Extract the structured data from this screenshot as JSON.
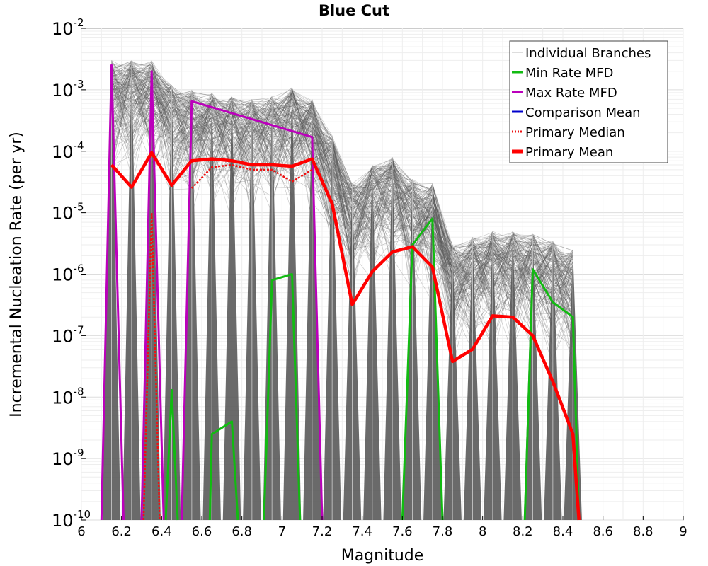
{
  "chart_data": {
    "type": "line",
    "title": "Blue Cut",
    "xlabel": "Magnitude",
    "ylabel": "Incremental Nucleation Rate (per yr)",
    "xlim": [
      6,
      9
    ],
    "ylim": [
      1e-10,
      0.01
    ],
    "yscale": "log",
    "grid": true,
    "legend_position": "top-right",
    "x_ticks": [
      "6",
      "6.2",
      "6.4",
      "6.6",
      "6.8",
      "7",
      "7.2",
      "7.4",
      "7.6",
      "7.8",
      "8",
      "8.2",
      "8.4",
      "8.6",
      "8.8",
      "9"
    ],
    "y_ticks": [
      {
        "base": "10",
        "exp": "-10"
      },
      {
        "base": "10",
        "exp": "-9"
      },
      {
        "base": "10",
        "exp": "-8"
      },
      {
        "base": "10",
        "exp": "-7"
      },
      {
        "base": "10",
        "exp": "-6"
      },
      {
        "base": "10",
        "exp": "-5"
      },
      {
        "base": "10",
        "exp": "-4"
      },
      {
        "base": "10",
        "exp": "-3"
      },
      {
        "base": "10",
        "exp": "-2"
      }
    ],
    "colors": {
      "individual": "#555555",
      "min_rate": "#11bb11",
      "max_rate": "#bb00bb",
      "comparison_mean": "#0000cc",
      "primary_median": "#ee1111",
      "primary_mean": "#ff0000"
    },
    "series": [
      {
        "name": "Individual Branches",
        "style": "band",
        "x": [
          6.15,
          6.25,
          6.35,
          6.45,
          6.55,
          6.65,
          6.75,
          6.85,
          6.95,
          7.05,
          7.15,
          7.25,
          7.35,
          7.45,
          7.55,
          7.65,
          7.75,
          7.85,
          7.95,
          8.05,
          8.15,
          8.25,
          8.35,
          8.45
        ],
        "upper": [
          0.003,
          0.003,
          0.003,
          0.0012,
          0.001,
          0.0009,
          0.0008,
          0.0007,
          0.0008,
          0.0011,
          0.0007,
          0.00018,
          3e-05,
          6e-05,
          8e-05,
          3.5e-05,
          3e-05,
          3e-06,
          4e-06,
          5e-06,
          5e-06,
          4.5e-06,
          3.5e-06,
          2.5e-06
        ]
      },
      {
        "name": "Min Rate MFD",
        "segments": [
          {
            "x": [
              6.42,
              6.45,
              6.48
            ],
            "y": [
              1e-10,
              1.3e-08,
              1e-10
            ]
          },
          {
            "x": [
              6.64,
              6.65,
              6.75,
              6.78
            ],
            "y": [
              1e-10,
              2.5e-09,
              4e-09,
              1e-10
            ]
          },
          {
            "x": [
              6.91,
              6.95,
              7.05,
              7.09
            ],
            "y": [
              1e-10,
              8e-07,
              1e-06,
              1e-10
            ]
          },
          {
            "x": [
              7.6,
              7.65,
              7.75,
              7.8
            ],
            "y": [
              1e-10,
              3e-06,
              8e-06,
              1e-10
            ]
          },
          {
            "x": [
              8.21,
              8.25,
              8.35,
              8.45,
              8.48
            ],
            "y": [
              1e-10,
              1.2e-06,
              3.5e-07,
              2e-07,
              1e-10
            ]
          }
        ]
      },
      {
        "name": "Max Rate MFD",
        "segments": [
          {
            "x": [
              6.1,
              6.15,
              6.21
            ],
            "y": [
              1e-10,
              0.0025,
              1e-10
            ]
          },
          {
            "x": [
              6.3,
              6.35,
              6.41
            ],
            "y": [
              1e-10,
              0.002,
              1e-10
            ]
          },
          {
            "x": [
              6.5,
              6.55,
              7.15,
              7.2
            ],
            "y": [
              1e-10,
              0.00065,
              0.00017,
              1e-10
            ]
          }
        ]
      },
      {
        "name": "Comparison Mean",
        "x": [
          7.85,
          7.95
        ],
        "y": [
          3.8e-08,
          6e-08
        ]
      },
      {
        "name": "Primary Median",
        "style": "dotted",
        "segments": [
          {
            "x": [
              6.31,
              6.35,
              6.39
            ],
            "y": [
              1e-10,
              1e-05,
              1e-10
            ]
          },
          {
            "x": [
              6.55,
              6.65,
              6.75,
              6.85,
              6.95,
              7.05,
              7.15
            ],
            "y": [
              2.5e-05,
              5.5e-05,
              6e-05,
              5e-05,
              5e-05,
              3.2e-05,
              5e-05
            ]
          }
        ]
      },
      {
        "name": "Primary Mean",
        "x": [
          6.15,
          6.25,
          6.35,
          6.45,
          6.55,
          6.65,
          6.75,
          6.85,
          6.95,
          7.05,
          7.15,
          7.25,
          7.35,
          7.45,
          7.55,
          7.65,
          7.75,
          7.85,
          7.95,
          8.05,
          8.15,
          8.25,
          8.35,
          8.45,
          8.48
        ],
        "y": [
          6e-05,
          2.6e-05,
          9.5e-05,
          2.8e-05,
          7e-05,
          7.5e-05,
          7e-05,
          6e-05,
          6e-05,
          5.7e-05,
          7.5e-05,
          1.4e-05,
          3.2e-07,
          1.1e-06,
          2.3e-06,
          2.8e-06,
          1.3e-06,
          3.8e-08,
          6e-08,
          2.1e-07,
          2e-07,
          1e-07,
          1.8e-08,
          2.5e-09,
          1e-10
        ]
      }
    ],
    "legend": [
      {
        "label": "Individual Branches",
        "style": "thin-gray"
      },
      {
        "label": "Min Rate MFD",
        "style": "green"
      },
      {
        "label": "Max Rate MFD",
        "style": "magenta"
      },
      {
        "label": "Comparison Mean",
        "style": "blue"
      },
      {
        "label": "Primary Median",
        "style": "red-dotted"
      },
      {
        "label": "Primary Mean",
        "style": "red-thick"
      }
    ]
  }
}
